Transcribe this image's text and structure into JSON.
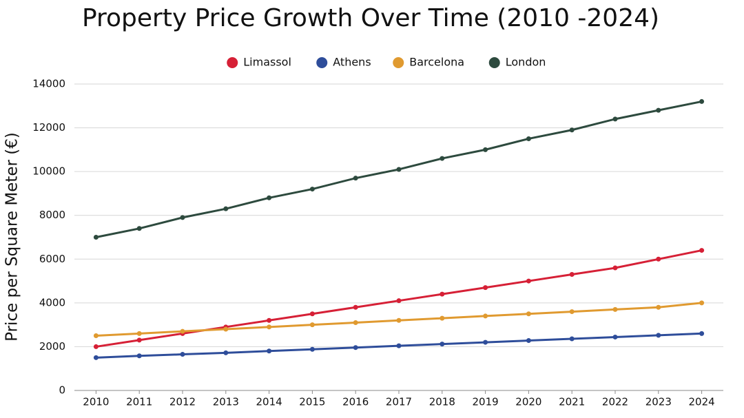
{
  "chart_data": {
    "type": "line",
    "title": "Property Price Growth Over Time (2010 -2024)",
    "y_label": "Price per Square Meter (€)",
    "x": [
      2010,
      2011,
      2012,
      2013,
      2014,
      2015,
      2016,
      2017,
      2018,
      2019,
      2020,
      2021,
      2022,
      2023,
      2024
    ],
    "xlim": [
      2009.5,
      2024.5
    ],
    "xticks": [
      2010,
      2011,
      2012,
      2013,
      2014,
      2015,
      2016,
      2017,
      2018,
      2019,
      2020,
      2021,
      2022,
      2023,
      2024
    ],
    "ylim": [
      0,
      14000
    ],
    "yticks": [
      0,
      2000,
      4000,
      6000,
      8000,
      10000,
      12000,
      14000
    ],
    "grid": true,
    "legend": "top",
    "series": [
      {
        "name": "Limassol",
        "color": "#d62036",
        "values": [
          2000,
          2300,
          2600,
          2900,
          3200,
          3500,
          3800,
          4100,
          4400,
          4700,
          5000,
          5300,
          5600,
          6000,
          6400
        ]
      },
      {
        "name": "Athens",
        "color": "#2e4d9a",
        "values": [
          1500,
          1580,
          1650,
          1720,
          1800,
          1880,
          1960,
          2040,
          2120,
          2200,
          2280,
          2360,
          2440,
          2520,
          2600
        ]
      },
      {
        "name": "Barcelona",
        "color": "#e09a30",
        "values": [
          2500,
          2600,
          2700,
          2800,
          2900,
          3000,
          3100,
          3200,
          3300,
          3400,
          3500,
          3600,
          3700,
          3800,
          4000
        ]
      },
      {
        "name": "London",
        "color": "#2d4a3e",
        "values": [
          7000,
          7400,
          7900,
          8300,
          8800,
          9200,
          9700,
          10100,
          10600,
          11000,
          11500,
          11900,
          12400,
          12800,
          13200
        ]
      }
    ]
  }
}
